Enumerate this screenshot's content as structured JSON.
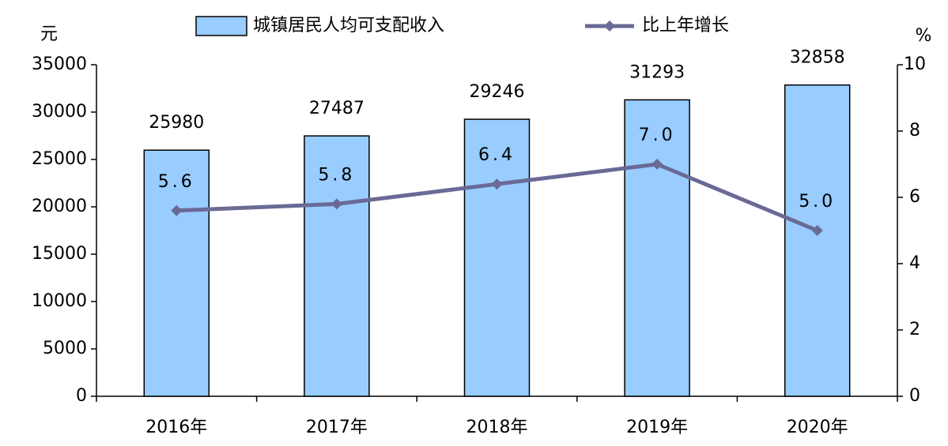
{
  "chart_data": {
    "type": "bar",
    "categories": [
      "2016年",
      "2017年",
      "2018年",
      "2019年",
      "2020年"
    ],
    "series": [
      {
        "name": "城镇居民人均可支配收入",
        "color": "#99ccff",
        "values": [
          25980,
          27487,
          29246,
          31293,
          32858
        ]
      },
      {
        "name": "比上年增长",
        "type": "line",
        "axis": "y2",
        "color": "#6a6a96",
        "values": [
          5.6,
          5.8,
          6.4,
          7.0,
          5.0
        ],
        "value_labels": [
          "5.6",
          "5.8",
          "6.4",
          "7.0",
          "5.0"
        ]
      }
    ],
    "y_label": "元",
    "y2_label": "%",
    "ylim": [
      0,
      35000
    ],
    "yticks": [
      0,
      5000,
      10000,
      15000,
      20000,
      25000,
      30000,
      35000
    ],
    "y2lim": [
      0,
      10
    ],
    "y2ticks": [
      0,
      2,
      4,
      6,
      8,
      10
    ],
    "legend": "top"
  }
}
